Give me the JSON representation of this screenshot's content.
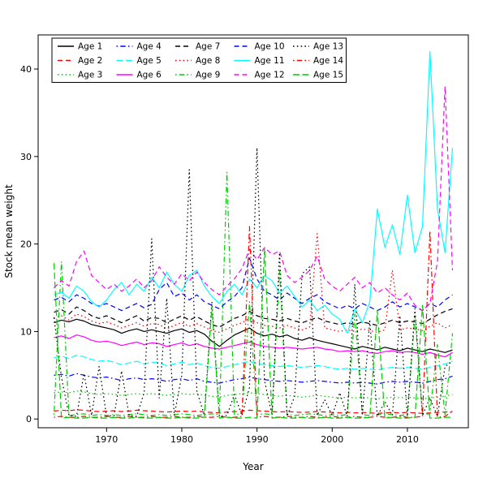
{
  "figure": {
    "background": "#ffffff"
  },
  "chart_data": {
    "type": "line",
    "title": "",
    "xlabel": "Year",
    "ylabel": "Stock mean weight",
    "grid": false,
    "legend_position": "top-left-inside",
    "legend_columns": 5,
    "legend_rows": 3,
    "xlim": [
      1960.9,
      2018.1
    ],
    "ylim": [
      -1.0,
      43.9
    ],
    "x_ticks": [
      1970,
      1980,
      1990,
      2000,
      2010
    ],
    "y_ticks": [
      0,
      10,
      20,
      30,
      40
    ],
    "x": [
      1963,
      1964,
      1965,
      1966,
      1967,
      1968,
      1969,
      1970,
      1971,
      1972,
      1973,
      1974,
      1975,
      1976,
      1977,
      1978,
      1979,
      1980,
      1981,
      1982,
      1983,
      1984,
      1985,
      1986,
      1987,
      1988,
      1989,
      1990,
      1991,
      1992,
      1993,
      1994,
      1995,
      1996,
      1997,
      1998,
      1999,
      2000,
      2001,
      2002,
      2003,
      2004,
      2005,
      2006,
      2007,
      2008,
      2009,
      2010,
      2011,
      2012,
      2013,
      2014,
      2015,
      2016
    ],
    "series": [
      {
        "name": "Age 1",
        "color": "#000000",
        "linetype": "solid",
        "values": [
          11.0,
          11.3,
          11.1,
          11.4,
          11.2,
          10.8,
          10.6,
          10.4,
          10.2,
          9.8,
          10.1,
          10.3,
          10.0,
          10.2,
          10.0,
          9.8,
          10.1,
          10.3,
          9.9,
          10.1,
          9.7,
          8.9,
          8.3,
          9.0,
          9.6,
          10.0,
          10.4,
          9.8,
          9.5,
          9.7,
          9.4,
          9.6,
          9.2,
          9.0,
          9.3,
          9.0,
          8.8,
          8.6,
          8.4,
          8.2,
          8.0,
          8.3,
          8.1,
          7.9,
          8.2,
          8.0,
          7.8,
          8.1,
          7.9,
          7.7,
          8.0,
          7.8,
          7.6,
          7.9
        ]
      },
      {
        "name": "Age 2",
        "color": "#FF0000",
        "linetype": "dashed",
        "values": [
          0.9,
          1.0,
          0.95,
          1.05,
          1.0,
          0.9,
          0.85,
          0.9,
          0.95,
          0.85,
          0.9,
          1.0,
          0.95,
          0.9,
          0.85,
          0.8,
          0.85,
          0.9,
          0.85,
          0.9,
          0.8,
          0.75,
          0.7,
          0.8,
          0.85,
          0.9,
          1.0,
          0.95,
          0.9,
          0.85,
          0.8,
          0.85,
          0.8,
          0.75,
          0.8,
          0.85,
          0.8,
          0.75,
          0.7,
          0.75,
          0.7,
          0.75,
          0.7,
          0.65,
          0.7,
          0.75,
          0.7,
          0.75,
          0.7,
          0.65,
          0.7,
          0.75,
          0.8,
          0.85
        ]
      },
      {
        "name": "Age 3",
        "color": "#00CD00",
        "linetype": "dotted",
        "values": [
          3.0,
          3.1,
          3.0,
          3.2,
          3.1,
          2.9,
          2.8,
          2.9,
          2.8,
          2.7,
          2.8,
          2.9,
          2.8,
          2.9,
          2.8,
          2.7,
          2.8,
          2.9,
          2.8,
          2.9,
          2.7,
          2.6,
          2.5,
          2.7,
          2.8,
          2.9,
          3.0,
          2.9,
          2.8,
          2.7,
          2.6,
          2.7,
          2.6,
          2.5,
          2.6,
          2.7,
          2.6,
          2.5,
          2.4,
          2.5,
          2.4,
          2.5,
          2.4,
          2.3,
          2.4,
          2.5,
          2.4,
          2.5,
          2.4,
          2.3,
          2.4,
          2.5,
          2.6,
          2.8
        ]
      },
      {
        "name": "Age 4",
        "color": "#0000FF",
        "linetype": "dotdash",
        "values": [
          5.0,
          5.1,
          4.9,
          5.2,
          5.0,
          4.8,
          4.7,
          4.8,
          4.6,
          4.4,
          4.6,
          4.7,
          4.5,
          4.6,
          4.5,
          4.3,
          4.5,
          4.6,
          4.4,
          4.6,
          4.3,
          4.2,
          4.1,
          4.3,
          4.5,
          4.6,
          4.8,
          4.6,
          4.5,
          4.4,
          4.3,
          4.4,
          4.3,
          4.2,
          4.3,
          4.4,
          4.3,
          4.2,
          4.1,
          4.2,
          4.1,
          4.2,
          4.1,
          4.0,
          4.2,
          4.3,
          4.2,
          4.3,
          4.2,
          4.1,
          4.3,
          4.5,
          4.6,
          4.9
        ]
      },
      {
        "name": "Age 5",
        "color": "#00FFFF",
        "linetype": "longdash",
        "values": [
          7.0,
          7.2,
          6.9,
          7.3,
          7.1,
          6.8,
          6.6,
          6.7,
          6.5,
          6.2,
          6.4,
          6.6,
          6.3,
          6.5,
          6.4,
          6.1,
          6.3,
          6.5,
          6.2,
          6.4,
          6.1,
          5.9,
          5.8,
          6.0,
          6.2,
          6.4,
          6.6,
          6.3,
          6.2,
          6.1,
          6.0,
          6.1,
          6.0,
          5.9,
          6.0,
          6.1,
          6.0,
          5.8,
          5.7,
          5.8,
          5.7,
          5.8,
          5.7,
          5.6,
          5.8,
          5.9,
          5.8,
          5.9,
          5.8,
          5.7,
          5.9,
          6.1,
          6.3,
          6.6
        ]
      },
      {
        "name": "Age 6",
        "color": "#FF00FF",
        "linetype": "solid",
        "values": [
          9.3,
          9.5,
          9.2,
          9.6,
          9.4,
          9.0,
          8.8,
          8.9,
          8.7,
          8.4,
          8.6,
          8.8,
          8.5,
          8.7,
          8.6,
          8.3,
          8.5,
          8.7,
          8.4,
          8.6,
          8.3,
          8.1,
          8.0,
          8.2,
          8.4,
          8.6,
          8.8,
          8.5,
          8.3,
          8.2,
          8.1,
          8.2,
          8.1,
          8.0,
          8.1,
          8.2,
          8.0,
          7.9,
          7.7,
          7.8,
          7.7,
          7.8,
          7.6,
          7.5,
          7.7,
          7.8,
          7.6,
          7.7,
          7.6,
          7.4,
          7.6,
          7.3,
          7.1,
          7.6
        ]
      },
      {
        "name": "Age 7",
        "color": "#000000",
        "linetype": "dashed",
        "values": [
          12.2,
          12.5,
          12.0,
          12.8,
          12.4,
          11.8,
          11.5,
          11.8,
          11.4,
          11.0,
          11.4,
          11.8,
          11.2,
          11.6,
          11.5,
          11.0,
          11.4,
          11.8,
          11.3,
          11.7,
          11.2,
          10.8,
          10.5,
          11.0,
          11.5,
          11.8,
          12.3,
          11.8,
          11.5,
          11.4,
          11.2,
          11.5,
          11.2,
          11.0,
          11.3,
          11.6,
          11.2,
          11.0,
          10.8,
          11.0,
          10.8,
          11.1,
          10.9,
          10.7,
          11.0,
          11.3,
          11.0,
          11.2,
          11.1,
          10.9,
          11.4,
          11.9,
          12.3,
          12.6
        ]
      },
      {
        "name": "Age 8",
        "color": "#FF0000",
        "linetype": "dotted",
        "values": [
          11.5,
          11.8,
          11.3,
          12.0,
          11.7,
          11.2,
          10.9,
          11.1,
          10.8,
          10.4,
          10.7,
          11.0,
          10.6,
          10.9,
          10.8,
          10.3,
          10.7,
          11.0,
          10.6,
          10.9,
          10.5,
          10.1,
          9.9,
          10.3,
          10.7,
          11.0,
          11.5,
          11.0,
          10.7,
          10.6,
          10.4,
          10.7,
          10.4,
          10.2,
          10.5,
          21.2,
          10.4,
          10.2,
          10.0,
          10.2,
          10.0,
          10.3,
          10.1,
          9.9,
          10.2,
          17.0,
          10.2,
          10.4,
          10.3,
          10.1,
          10.6,
          11.0,
          10.4,
          10.8
        ]
      },
      {
        "name": "Age 9",
        "color": "#00CD00",
        "linetype": "dotdash",
        "values": [
          0.5,
          18.0,
          0.4,
          0.5,
          0.6,
          0.4,
          0.5,
          0.4,
          0.5,
          0.4,
          0.5,
          0.6,
          0.5,
          0.4,
          0.5,
          0.4,
          0.5,
          0.6,
          0.5,
          0.4,
          0.5,
          0.6,
          0.5,
          28.2,
          0.5,
          0.6,
          13.4,
          0.5,
          0.6,
          0.5,
          17.0,
          0.5,
          0.4,
          0.5,
          0.6,
          0.5,
          0.4,
          0.5,
          0.4,
          0.5,
          12.0,
          0.5,
          0.4,
          0.5,
          0.6,
          0.5,
          0.4,
          0.5,
          11.8,
          0.5,
          0.6,
          8.5,
          0.5,
          9.8
        ]
      },
      {
        "name": "Age 10",
        "color": "#0000FF",
        "linetype": "dashed",
        "values": [
          13.6,
          13.9,
          13.4,
          14.2,
          13.8,
          13.2,
          12.9,
          13.2,
          12.8,
          12.4,
          12.8,
          13.2,
          12.7,
          13.1,
          14.8,
          15.6,
          14.0,
          14.4,
          13.6,
          14.2,
          13.4,
          13.0,
          12.6,
          13.4,
          14.0,
          15.0,
          18.4,
          16.0,
          14.6,
          14.2,
          13.6,
          14.4,
          13.8,
          13.2,
          13.8,
          14.2,
          13.4,
          13.0,
          12.6,
          13.0,
          12.6,
          13.2,
          12.8,
          12.4,
          12.8,
          13.4,
          12.8,
          13.2,
          12.8,
          12.4,
          13.2,
          12.8,
          13.6,
          14.2
        ]
      },
      {
        "name": "Age 11",
        "color": "#00FFFF",
        "linetype": "solid",
        "values": [
          14.2,
          14.5,
          13.8,
          15.2,
          14.6,
          13.4,
          12.8,
          13.6,
          14.8,
          15.6,
          14.2,
          15.4,
          14.6,
          16.2,
          15.0,
          16.8,
          15.4,
          14.6,
          16.4,
          17.0,
          15.2,
          14.0,
          13.2,
          14.6,
          15.4,
          14.2,
          16.0,
          15.0,
          16.4,
          15.8,
          14.4,
          15.2,
          14.0,
          12.8,
          13.6,
          12.4,
          13.0,
          12.0,
          11.4,
          9.8,
          12.6,
          11.0,
          13.4,
          24.0,
          19.6,
          22.2,
          18.8,
          25.6,
          19.0,
          22.0,
          42.0,
          24.0,
          19.0,
          31.0
        ]
      },
      {
        "name": "Age 12",
        "color": "#FF00FF",
        "linetype": "dashed",
        "values": [
          15.0,
          15.8,
          15.2,
          18.0,
          19.2,
          16.4,
          15.6,
          14.8,
          15.4,
          14.6,
          15.2,
          16.0,
          15.0,
          15.8,
          17.4,
          16.2,
          15.4,
          16.6,
          15.8,
          16.8,
          15.6,
          14.8,
          14.2,
          15.2,
          16.0,
          17.2,
          19.4,
          18.2,
          19.6,
          18.8,
          19.2,
          16.4,
          15.6,
          16.2,
          17.0,
          18.6,
          16.0,
          15.2,
          14.6,
          15.4,
          16.2,
          15.0,
          15.6,
          14.4,
          15.0,
          14.2,
          13.6,
          14.4,
          13.0,
          12.4,
          13.2,
          18.0,
          38.0,
          17.0
        ]
      },
      {
        "name": "Age 13",
        "color": "#000000",
        "linetype": "dotted",
        "values": [
          11.6,
          4.8,
          0.4,
          0.3,
          5.2,
          0.4,
          6.0,
          0.3,
          0.4,
          5.5,
          0.4,
          0.3,
          3.0,
          20.6,
          2.4,
          13.8,
          0.4,
          5.0,
          28.5,
          3.2,
          0.4,
          13.4,
          0.3,
          0.4,
          2.8,
          0.4,
          3.6,
          31.0,
          4.4,
          0.4,
          19.0,
          0.3,
          2.6,
          16.6,
          17.4,
          0.4,
          2.2,
          0.4,
          3.0,
          0.3,
          15.4,
          0.4,
          11.2,
          0.3,
          2.0,
          0.4,
          11.8,
          0.3,
          12.6,
          0.4,
          2.4,
          0.3,
          6.0,
          6.6
        ]
      },
      {
        "name": "Age 14",
        "color": "#FF0000",
        "linetype": "dotdash",
        "values": [
          0.2,
          0.3,
          0.2,
          0.2,
          0.3,
          0.2,
          0.2,
          0.3,
          0.2,
          0.2,
          0.3,
          0.2,
          0.2,
          0.3,
          0.2,
          0.2,
          0.3,
          0.2,
          0.2,
          0.3,
          0.2,
          0.2,
          0.3,
          0.2,
          0.2,
          0.3,
          22.0,
          0.2,
          0.3,
          0.2,
          0.2,
          0.3,
          0.2,
          0.2,
          0.3,
          0.2,
          0.2,
          0.3,
          0.2,
          0.2,
          0.3,
          0.2,
          0.2,
          0.3,
          0.2,
          0.2,
          0.3,
          0.2,
          0.2,
          0.3,
          21.5,
          0.2,
          0.3,
          0.9
        ]
      },
      {
        "name": "Age 15",
        "color": "#00CD00",
        "linetype": "longdash",
        "values": [
          17.8,
          0.1,
          0.2,
          0.1,
          0.1,
          0.2,
          0.1,
          0.1,
          0.2,
          0.1,
          0.1,
          0.2,
          0.1,
          0.1,
          0.2,
          0.1,
          0.1,
          0.2,
          0.1,
          0.1,
          0.2,
          12.8,
          0.1,
          0.2,
          0.1,
          0.1,
          0.2,
          0.1,
          19.5,
          0.1,
          0.2,
          0.1,
          0.1,
          0.2,
          0.1,
          0.1,
          0.2,
          0.1,
          0.1,
          0.2,
          0.1,
          0.1,
          0.2,
          12.4,
          0.1,
          0.2,
          0.1,
          0.1,
          0.2,
          13.0,
          0.1,
          0.1,
          0.2,
          0.2
        ]
      }
    ]
  }
}
